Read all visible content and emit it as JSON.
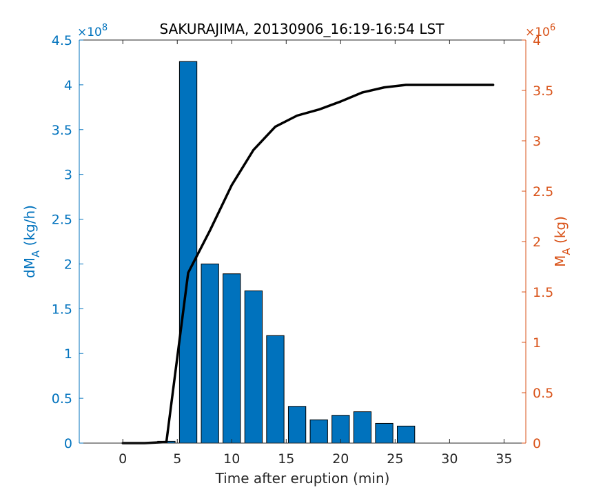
{
  "chart_data": {
    "type": "bar",
    "title": "SAKURAJIMA, 20130906_16:19-16:54 LST",
    "xlabel": "Time after eruption (min)",
    "xlim": [
      -4,
      37
    ],
    "xticks": [
      0,
      5,
      10,
      15,
      20,
      25,
      30,
      35
    ],
    "bar_width": 1.6,
    "left_axis": {
      "label_main": "dM",
      "label_sub": "A",
      "label_unit": " (kg/h)",
      "ylim": [
        0,
        4.5
      ],
      "ticks": [
        "0",
        "0.5",
        "1",
        "1.5",
        "2",
        "2.5",
        "3",
        "3.5",
        "4",
        "4.5"
      ],
      "exponent_base": "×10",
      "exponent_power": "8",
      "color": "#0072BD"
    },
    "right_axis": {
      "label_main": "M",
      "label_sub": "A",
      "label_unit": " (kg)",
      "ylim": [
        0,
        4
      ],
      "ticks": [
        "0",
        "0.5",
        "1",
        "1.5",
        "2",
        "2.5",
        "3",
        "3.5",
        "4"
      ],
      "exponent_base": "×10",
      "exponent_power": "6",
      "color": "#D95319"
    },
    "series": [
      {
        "type": "bar",
        "axis": "left",
        "color": "#0072BD",
        "x": [
          0,
          2,
          4,
          6,
          8,
          10,
          12,
          14,
          16,
          18,
          20,
          22,
          24,
          26
        ],
        "values": [
          0.0,
          0.0,
          0.02,
          4.26,
          2.0,
          1.89,
          1.7,
          1.2,
          0.41,
          0.26,
          0.31,
          0.35,
          0.22,
          0.19
        ]
      },
      {
        "type": "line",
        "axis": "right",
        "color": "#000000",
        "x": [
          0,
          2,
          4,
          6,
          8,
          10,
          12,
          14,
          16,
          18,
          20,
          22,
          24,
          26,
          28,
          30,
          32,
          34
        ],
        "values": [
          0.0,
          0.0,
          0.01,
          1.69,
          2.11,
          2.56,
          2.91,
          3.14,
          3.25,
          3.31,
          3.39,
          3.48,
          3.53,
          3.555,
          3.555,
          3.555,
          3.555,
          3.555
        ]
      }
    ]
  }
}
